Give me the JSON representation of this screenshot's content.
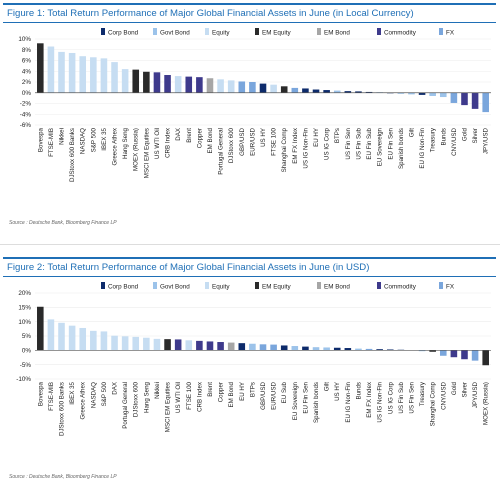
{
  "colors": {
    "corp_bond": "#0d2b6b",
    "govt_bond": "#9cc3ea",
    "equity": "#c6ddf2",
    "em_equity": "#2a2a2a",
    "em_bond": "#a6a6a6",
    "commodity": "#3e3a8c",
    "fx": "#7aa6dc",
    "title": "#1f6fb6"
  },
  "source_text": "Source : Deutsche Bank, Bloomberg Finance LP",
  "chart_data": [
    {
      "type": "bar",
      "title": "Figure 1: Total Return Performance of Major Global Financial Assets in June (in Local Currency)",
      "ylim": [
        -6,
        10
      ],
      "yticks": [
        10,
        8,
        6,
        4,
        2,
        0,
        -2,
        -4,
        -6
      ],
      "ytick_labels": [
        "10%",
        "8%",
        "6%",
        "4%",
        "2%",
        "0%",
        "-2%",
        "-4%",
        "-6%"
      ],
      "legend": [
        "Corp Bond",
        "Govt Bond",
        "Equity",
        "EM Equity",
        "EM Bond",
        "Commodity",
        "FX"
      ],
      "legend_keys": [
        "corp_bond",
        "govt_bond",
        "equity",
        "em_equity",
        "em_bond",
        "commodity",
        "fx"
      ],
      "categories": [
        "Bovespa",
        "FTSE-MIB",
        "Nikkei",
        "DJStoxx 600 Banks",
        "NASDAQ",
        "S&P 500",
        "IBEX 35",
        "Greece Athex",
        "Hang Seng",
        "MOEX (Russia)",
        "MSCI EM Equities",
        "US WTI Oil",
        "CRB Index",
        "DAX",
        "Brent",
        "Copper",
        "EM Bond",
        "Portugal General",
        "DJStoxx 600",
        "GBP/USD",
        "EUR/USD",
        "US HY",
        "FTSE 100",
        "Shanghai Comp",
        "EM FX Index",
        "US IG Non-Fin",
        "EU HY",
        "US IG Corp",
        "BTPs",
        "US Fin Sen",
        "US Fin Sub",
        "EU Fin Sub",
        "EU Sovereign",
        "EU Fin Sen",
        "Spanish bonds",
        "Gilt",
        "EU IG Non-Fin",
        "Treasury",
        "Bunds",
        "CNY/USD",
        "Gold",
        "Silver",
        "JPY/USD"
      ],
      "values": [
        9.2,
        8.6,
        7.6,
        7.4,
        6.8,
        6.6,
        6.4,
        5.7,
        4.4,
        4.3,
        3.9,
        3.8,
        3.3,
        3.1,
        3.0,
        2.9,
        2.7,
        2.5,
        2.3,
        2.1,
        2.0,
        1.7,
        1.5,
        1.2,
        0.9,
        0.8,
        0.6,
        0.5,
        0.4,
        0.3,
        0.25,
        0.15,
        0.1,
        -0.1,
        -0.2,
        -0.3,
        -0.4,
        -0.6,
        -0.8,
        -1.9,
        -2.3,
        -3.0,
        -3.6
      ],
      "kinds": [
        "em_equity",
        "equity",
        "equity",
        "equity",
        "equity",
        "equity",
        "equity",
        "equity",
        "equity",
        "em_equity",
        "em_equity",
        "commodity",
        "commodity",
        "equity",
        "commodity",
        "commodity",
        "em_bond",
        "equity",
        "equity",
        "fx",
        "fx",
        "corp_bond",
        "equity",
        "em_equity",
        "fx",
        "corp_bond",
        "corp_bond",
        "corp_bond",
        "govt_bond",
        "corp_bond",
        "corp_bond",
        "corp_bond",
        "govt_bond",
        "corp_bond",
        "govt_bond",
        "govt_bond",
        "corp_bond",
        "govt_bond",
        "govt_bond",
        "fx",
        "commodity",
        "commodity",
        "fx"
      ]
    },
    {
      "type": "bar",
      "title": "Figure 2: Total Return Performance of Major Global Financial Assets in June (in USD)",
      "ylim": [
        -10,
        20
      ],
      "yticks": [
        20,
        15,
        10,
        5,
        0,
        -5,
        -10
      ],
      "ytick_labels": [
        "20%",
        "15%",
        "10%",
        "5%",
        "0%",
        "-5%",
        "-10%"
      ],
      "legend": [
        "Corp Bond",
        "Govt Bond",
        "Equity",
        "EM Equity",
        "EM Bond",
        "Commodity",
        "FX"
      ],
      "legend_keys": [
        "corp_bond",
        "govt_bond",
        "equity",
        "em_equity",
        "em_bond",
        "commodity",
        "fx"
      ],
      "categories": [
        "Bovespa",
        "FTSE-MIB",
        "DJStoxx 600 Banks",
        "IBEX 35",
        "Greece Athex",
        "NASDAQ",
        "S&P 500",
        "DAX",
        "Portugal General",
        "DJStoxx 600",
        "Hang Seng",
        "Nikkei",
        "MSCI EM Equities",
        "US WTI Oil",
        "FTSE 100",
        "CRB Index",
        "Brent",
        "Copper",
        "EM Bond",
        "EU HY",
        "BTPs",
        "GBP/USD",
        "EUR/USD",
        "EU Sub",
        "EU Sovereign",
        "EU Fin Sen",
        "Spanish bonds",
        "Gilt",
        "US HY",
        "EU IG Non-Fin",
        "Bunds",
        "EM FX Index",
        "US IG Non-Fin",
        "US IG Corp",
        "US Fin Sub",
        "US Fin Sen",
        "Treasury",
        "Shanghai Comp",
        "CNY/USD",
        "Gold",
        "Silver",
        "JPY/USD",
        "MOEX (Russia)"
      ],
      "values": [
        15.2,
        10.8,
        9.6,
        8.6,
        7.8,
        6.8,
        6.6,
        5.1,
        4.9,
        4.7,
        4.4,
        4.0,
        3.9,
        3.8,
        3.5,
        3.3,
        3.1,
        2.9,
        2.7,
        2.5,
        2.3,
        2.1,
        2.0,
        1.7,
        1.5,
        1.3,
        1.1,
        1.0,
        0.9,
        0.8,
        0.6,
        0.5,
        0.4,
        0.3,
        0.2,
        0.1,
        -0.3,
        -0.5,
        -1.9,
        -2.4,
        -3.1,
        -3.6,
        -5.2
      ],
      "kinds": [
        "em_equity",
        "equity",
        "equity",
        "equity",
        "equity",
        "equity",
        "equity",
        "equity",
        "equity",
        "equity",
        "equity",
        "equity",
        "em_equity",
        "commodity",
        "equity",
        "commodity",
        "commodity",
        "commodity",
        "em_bond",
        "corp_bond",
        "govt_bond",
        "fx",
        "fx",
        "corp_bond",
        "govt_bond",
        "corp_bond",
        "govt_bond",
        "govt_bond",
        "corp_bond",
        "corp_bond",
        "govt_bond",
        "fx",
        "corp_bond",
        "corp_bond",
        "corp_bond",
        "corp_bond",
        "govt_bond",
        "em_equity",
        "fx",
        "commodity",
        "commodity",
        "fx",
        "em_equity"
      ]
    }
  ]
}
